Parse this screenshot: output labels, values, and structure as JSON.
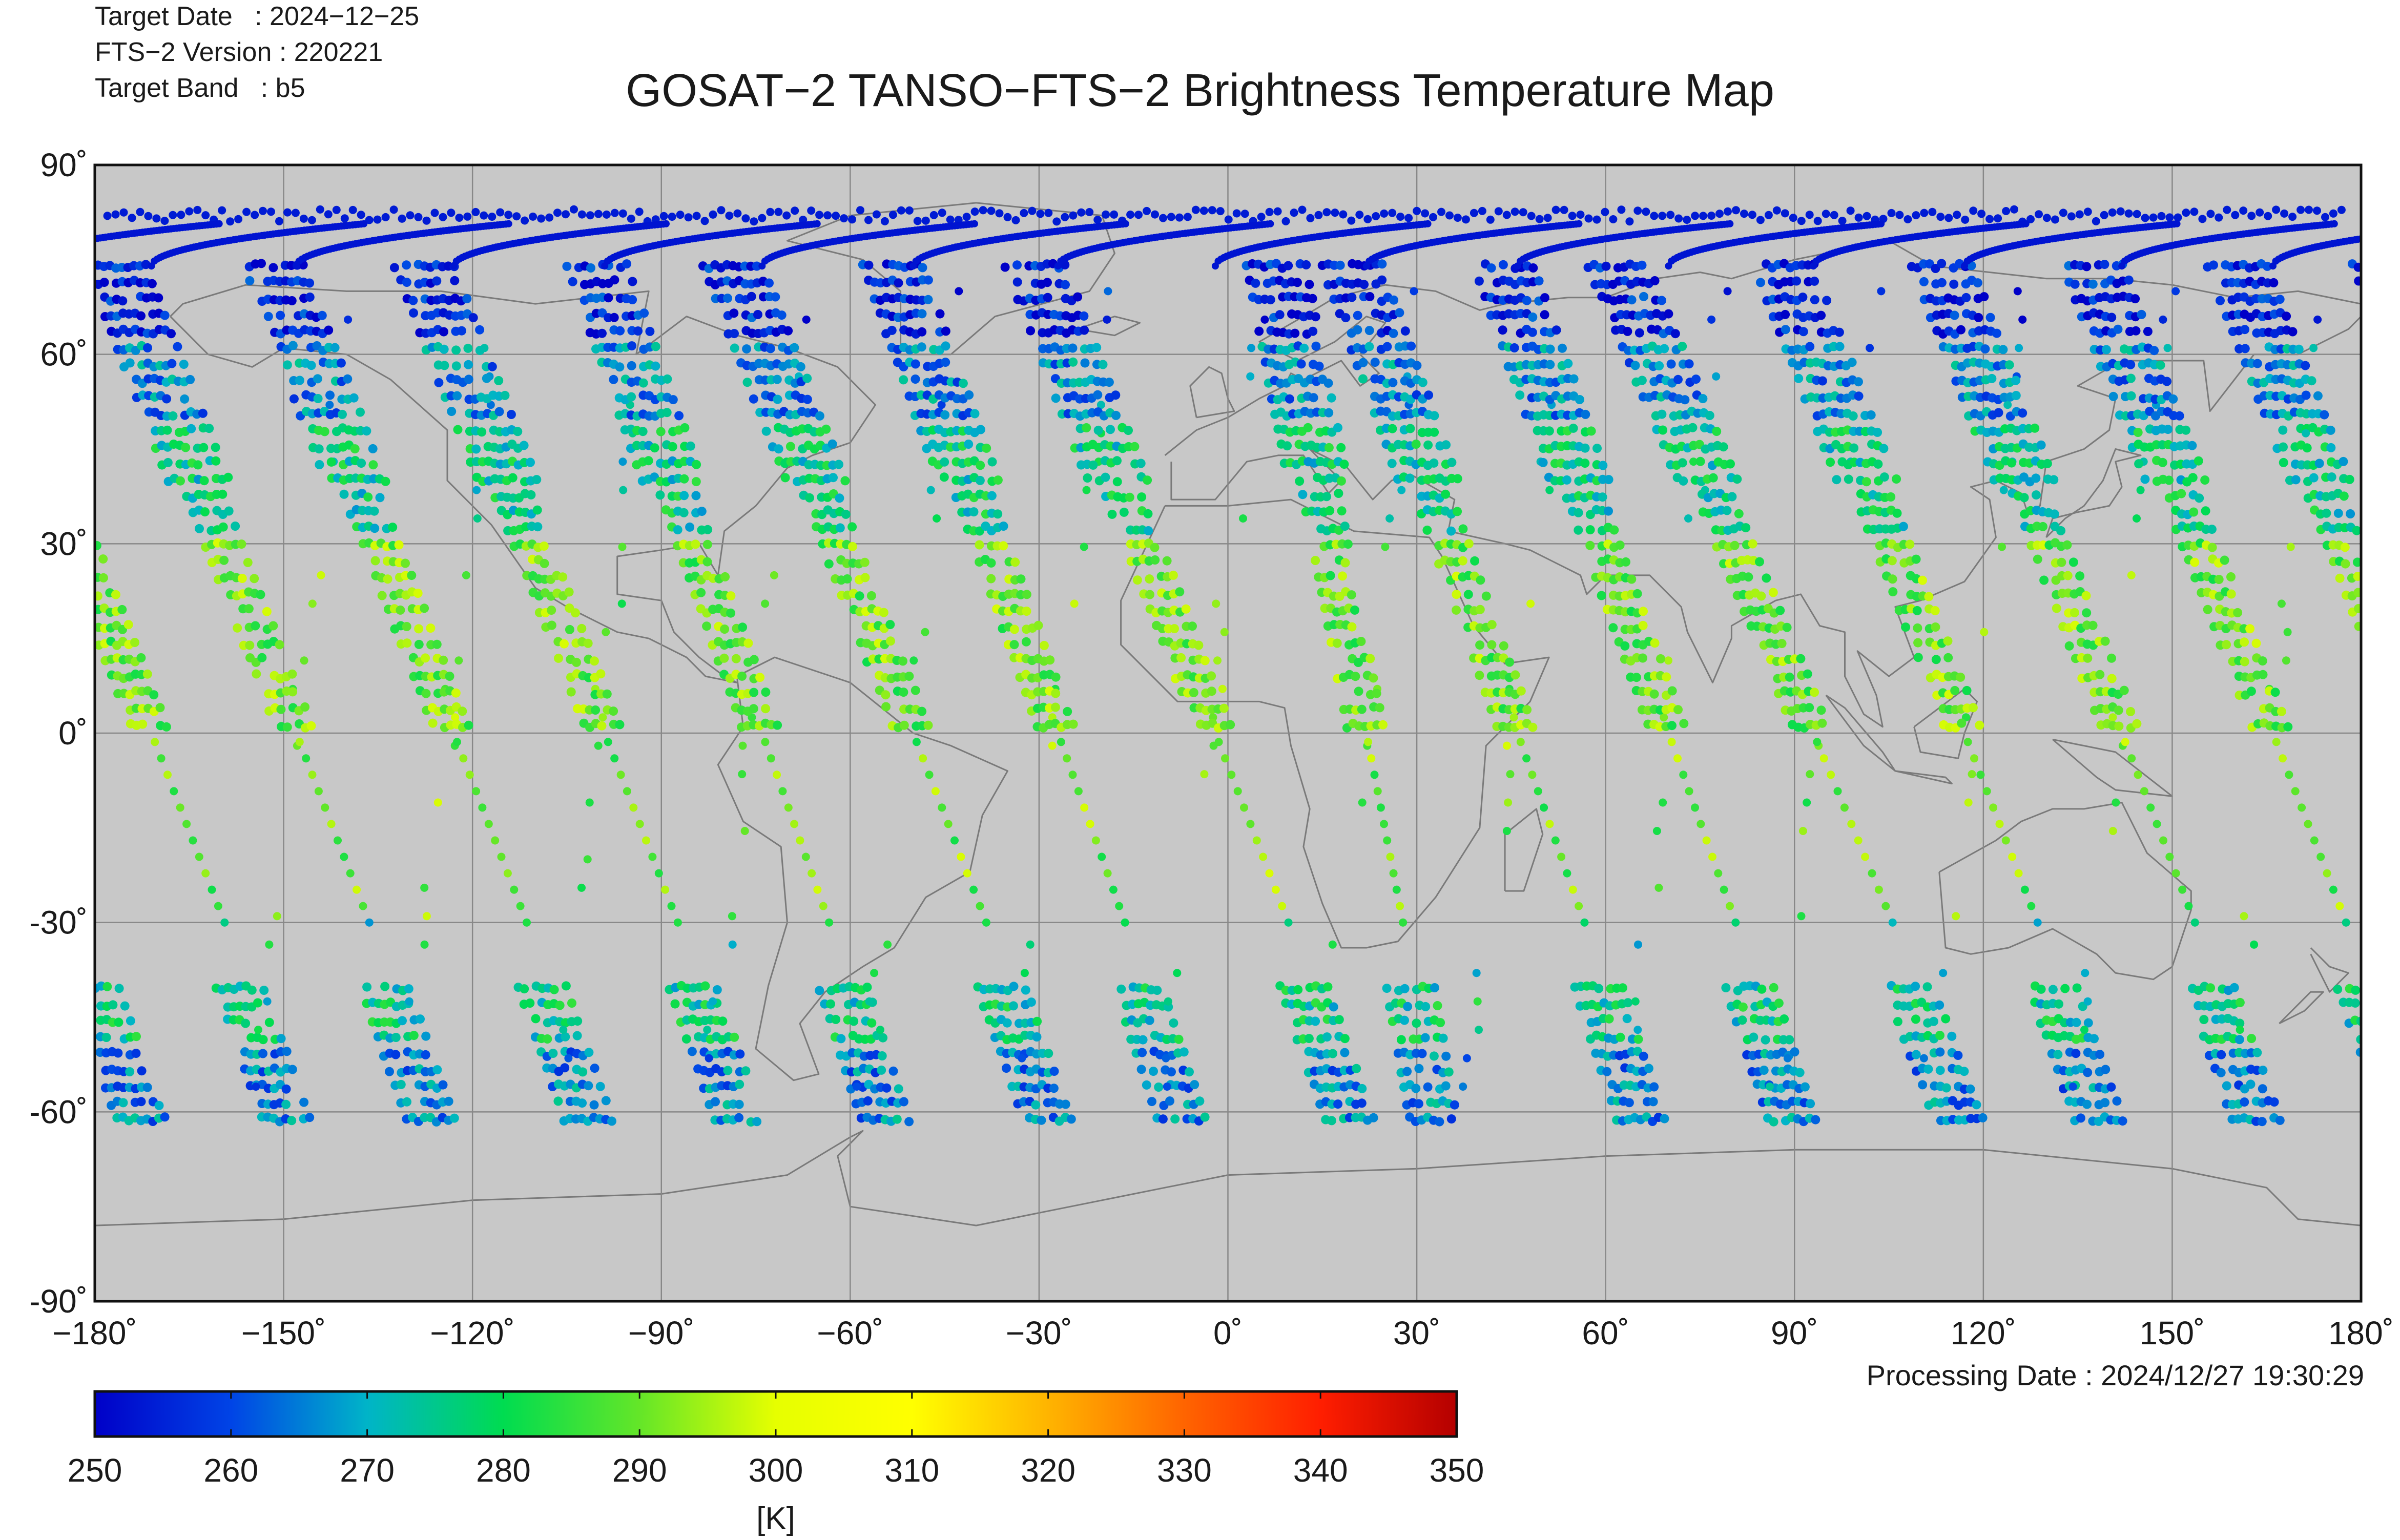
{
  "header": {
    "target_date_line": "Target Date   : 2024−12−25",
    "version_line": "FTS−2 Version : 220221",
    "band_line": "Target Band   : b5",
    "title": "GOSAT−2 TANSO−FTS−2 Brightness Temperature Map"
  },
  "footer": {
    "processing_line": "Processing Date : 2024/12/27 19:30:29"
  },
  "map": {
    "projection": "equirectangular",
    "lon_range": [
      -180,
      180
    ],
    "lat_range": [
      -90,
      90
    ],
    "lon_ticks": [
      {
        "value": -180,
        "label": "−180˚"
      },
      {
        "value": -150,
        "label": "−150˚"
      },
      {
        "value": -120,
        "label": "−120˚"
      },
      {
        "value": -90,
        "label": "−90˚"
      },
      {
        "value": -60,
        "label": "−60˚"
      },
      {
        "value": -30,
        "label": "−30˚"
      },
      {
        "value": 0,
        "label": "0˚"
      },
      {
        "value": 30,
        "label": "30˚"
      },
      {
        "value": 60,
        "label": "60˚"
      },
      {
        "value": 90,
        "label": "90˚"
      },
      {
        "value": 120,
        "label": "120˚"
      },
      {
        "value": 150,
        "label": "150˚"
      },
      {
        "value": 180,
        "label": "180˚"
      }
    ],
    "lat_ticks": [
      {
        "value": 90,
        "label": "90˚"
      },
      {
        "value": 60,
        "label": "60˚"
      },
      {
        "value": 30,
        "label": "30˚"
      },
      {
        "value": 0,
        "label": "0˚"
      },
      {
        "value": -30,
        "label": "-30˚"
      },
      {
        "value": -60,
        "label": "-60˚"
      },
      {
        "value": -90,
        "label": "-90˚"
      }
    ],
    "grid": true,
    "background_color": "#c8c8c8",
    "coastline_color": "#7a7a7a",
    "grid_color": "#888888",
    "observation_tracks": [
      {
        "equator_lon": -171,
        "south_end_lon": -159,
        "ascending_lons": [
          -148
        ]
      },
      {
        "equator_lon": -148,
        "south_end_lon": -136,
        "ascending_lons": [
          -124
        ]
      },
      {
        "equator_lon": -123,
        "south_end_lon": -111,
        "ascending_lons": [
          -100
        ]
      },
      {
        "equator_lon": -99,
        "south_end_lon": -87,
        "ascending_lons": [
          -76
        ]
      },
      {
        "equator_lon": -74,
        "south_end_lon": -63,
        "ascending_lons": [
          -51
        ]
      },
      {
        "equator_lon": -50,
        "south_end_lon": -38,
        "ascending_lons": [
          -27
        ]
      },
      {
        "equator_lon": -27,
        "south_end_lon": -16,
        "ascending_lons": [
          -3
        ]
      },
      {
        "equator_lon": -2,
        "south_end_lon": 10,
        "ascending_lons": [
          22
        ]
      },
      {
        "equator_lon": 22,
        "south_end_lon": 28,
        "ascending_lons": [
          45
        ]
      },
      {
        "equator_lon": 46,
        "south_end_lon": 57,
        "ascending_lons": [
          70
        ]
      },
      {
        "equator_lon": 70,
        "south_end_lon": 81,
        "ascending_lons": [
          94
        ]
      },
      {
        "equator_lon": 93,
        "south_end_lon": 106,
        "ascending_lons": [
          118
        ]
      },
      {
        "equator_lon": 117,
        "south_end_lon": 129,
        "ascending_lons": [
          141
        ]
      },
      {
        "equator_lon": 142,
        "south_end_lon": 154,
        "ascending_lons": [
          166
        ]
      },
      {
        "equator_lon": 166,
        "south_end_lon": 178,
        "ascending_lons": []
      }
    ]
  },
  "colorbar": {
    "min": 250,
    "max": 350,
    "ticks": [
      "250",
      "260",
      "270",
      "280",
      "290",
      "300",
      "310",
      "320",
      "330",
      "340",
      "350"
    ],
    "unit": "[K]",
    "stops": [
      "#0000c8",
      "#0044e6",
      "#00b4c8",
      "#00dc50",
      "#64e628",
      "#e6ff00",
      "#ffff00",
      "#ffb400",
      "#ff6400",
      "#ff1e00",
      "#b40000"
    ]
  }
}
